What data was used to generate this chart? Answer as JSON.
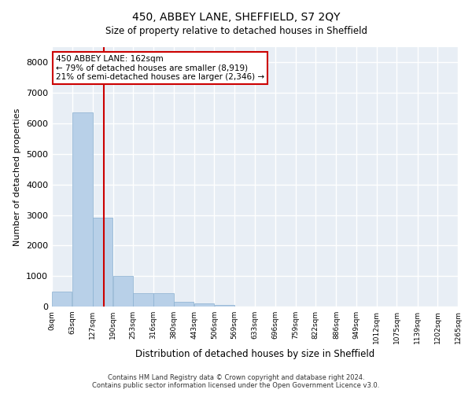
{
  "title": "450, ABBEY LANE, SHEFFIELD, S7 2QY",
  "subtitle": "Size of property relative to detached houses in Sheffield",
  "xlabel": "Distribution of detached houses by size in Sheffield",
  "ylabel": "Number of detached properties",
  "bar_color": "#b8d0e8",
  "bar_edge_color": "#8ab0d0",
  "background_color": "#e8eef5",
  "grid_color": "#ffffff",
  "vline_color": "#cc0000",
  "vline_x": 162,
  "annotation_title": "450 ABBEY LANE: 162sqm",
  "annotation_line1": "← 79% of detached houses are smaller (8,919)",
  "annotation_line2": "21% of semi-detached houses are larger (2,346) →",
  "footer_line1": "Contains HM Land Registry data © Crown copyright and database right 2024.",
  "footer_line2": "Contains public sector information licensed under the Open Government Licence v3.0.",
  "bin_edges": [
    0,
    63,
    127,
    190,
    253,
    316,
    380,
    443,
    506,
    569,
    633,
    696,
    759,
    822,
    886,
    949,
    1012,
    1075,
    1139,
    1202,
    1265
  ],
  "bin_labels": [
    "0sqm",
    "63sqm",
    "127sqm",
    "190sqm",
    "253sqm",
    "316sqm",
    "380sqm",
    "443sqm",
    "506sqm",
    "569sqm",
    "633sqm",
    "696sqm",
    "759sqm",
    "822sqm",
    "886sqm",
    "949sqm",
    "1012sqm",
    "1075sqm",
    "1139sqm",
    "1202sqm",
    "1265sqm"
  ],
  "bar_heights": [
    500,
    6350,
    2900,
    1000,
    450,
    450,
    150,
    100,
    60,
    0,
    0,
    0,
    0,
    0,
    0,
    0,
    0,
    0,
    0,
    0
  ],
  "ylim": [
    0,
    8500
  ],
  "yticks": [
    0,
    1000,
    2000,
    3000,
    4000,
    5000,
    6000,
    7000,
    8000
  ]
}
